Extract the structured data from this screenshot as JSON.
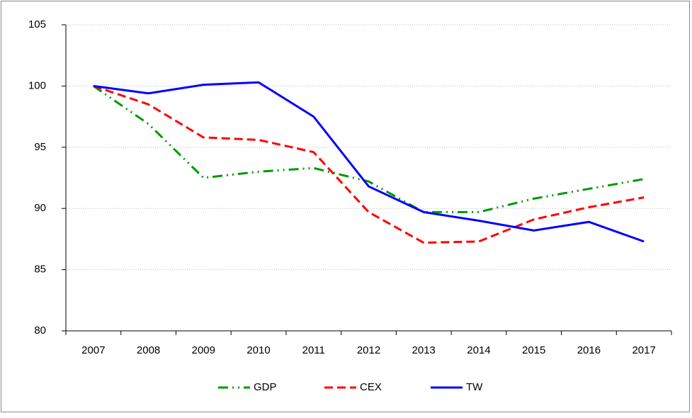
{
  "chart_data": {
    "type": "line",
    "categories": [
      "2007",
      "2008",
      "2009",
      "2010",
      "2011",
      "2012",
      "2013",
      "2014",
      "2015",
      "2016",
      "2017"
    ],
    "series": [
      {
        "name": "GDP",
        "color": "#009900",
        "line_style": "dashdot",
        "values": [
          100,
          96.9,
          92.5,
          93.0,
          93.3,
          92.2,
          89.7,
          89.7,
          90.8,
          91.6,
          92.4
        ]
      },
      {
        "name": "CEX",
        "color": "#ff0000",
        "line_style": "dashed",
        "values": [
          100,
          98.5,
          95.8,
          95.6,
          94.6,
          89.7,
          87.2,
          87.3,
          89.1,
          90.1,
          90.9
        ]
      },
      {
        "name": "TW",
        "color": "#0000ff",
        "line_style": "solid",
        "values": [
          100,
          99.4,
          100.1,
          100.3,
          97.5,
          91.8,
          89.7,
          89.0,
          88.2,
          88.9,
          87.3
        ]
      }
    ],
    "ylim": [
      80,
      105
    ],
    "yticks": [
      80,
      85,
      90,
      95,
      100,
      105
    ],
    "grid": true,
    "legend": "bottom"
  }
}
